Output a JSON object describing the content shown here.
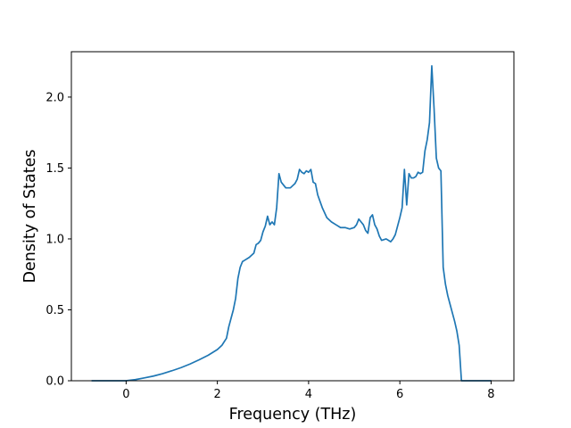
{
  "chart_data": {
    "type": "line",
    "title": "",
    "xlabel": "Frequency (THz)",
    "ylabel": "Density of States",
    "xlim": [
      -1.2,
      8.5
    ],
    "ylim": [
      0.0,
      2.32
    ],
    "xticks": [
      0,
      2,
      4,
      6,
      8
    ],
    "xtick_labels": [
      "0",
      "2",
      "4",
      "6",
      "8"
    ],
    "yticks": [
      0.0,
      0.5,
      1.0,
      1.5,
      2.0
    ],
    "ytick_labels": [
      "0.0",
      "0.5",
      "1.0",
      "1.5",
      "2.0"
    ],
    "grid": false,
    "legend": "none",
    "series": [
      {
        "color": "#1f77b4",
        "x": [
          -0.75,
          -0.2,
          0.0,
          0.2,
          0.4,
          0.6,
          0.8,
          1.0,
          1.2,
          1.4,
          1.6,
          1.8,
          2.0,
          2.1,
          2.2,
          2.25,
          2.3,
          2.35,
          2.4,
          2.45,
          2.5,
          2.55,
          2.6,
          2.7,
          2.8,
          2.85,
          2.9,
          2.95,
          3.0,
          3.05,
          3.1,
          3.15,
          3.2,
          3.25,
          3.3,
          3.35,
          3.4,
          3.5,
          3.6,
          3.7,
          3.75,
          3.8,
          3.85,
          3.9,
          3.95,
          4.0,
          4.05,
          4.1,
          4.15,
          4.2,
          4.3,
          4.4,
          4.5,
          4.6,
          4.7,
          4.8,
          4.9,
          5.0,
          5.05,
          5.1,
          5.15,
          5.2,
          5.25,
          5.3,
          5.35,
          5.4,
          5.45,
          5.5,
          5.55,
          5.6,
          5.7,
          5.8,
          5.85,
          5.9,
          6.0,
          6.05,
          6.1,
          6.15,
          6.2,
          6.25,
          6.3,
          6.35,
          6.4,
          6.45,
          6.5,
          6.55,
          6.6,
          6.65,
          6.7,
          6.75,
          6.8,
          6.85,
          6.9,
          6.95,
          7.0,
          7.05,
          7.1,
          7.15,
          7.2,
          7.25,
          7.3,
          7.35,
          7.5,
          8.0
        ],
        "y": [
          0.0,
          0.0,
          0.0,
          0.008,
          0.02,
          0.033,
          0.05,
          0.07,
          0.092,
          0.118,
          0.148,
          0.18,
          0.22,
          0.25,
          0.3,
          0.38,
          0.44,
          0.5,
          0.58,
          0.72,
          0.8,
          0.84,
          0.85,
          0.87,
          0.9,
          0.96,
          0.97,
          0.99,
          1.05,
          1.09,
          1.16,
          1.1,
          1.12,
          1.1,
          1.22,
          1.46,
          1.4,
          1.36,
          1.36,
          1.39,
          1.42,
          1.49,
          1.47,
          1.46,
          1.48,
          1.47,
          1.49,
          1.4,
          1.39,
          1.31,
          1.22,
          1.15,
          1.12,
          1.1,
          1.08,
          1.08,
          1.07,
          1.08,
          1.1,
          1.14,
          1.12,
          1.1,
          1.06,
          1.04,
          1.15,
          1.17,
          1.1,
          1.07,
          1.02,
          0.99,
          1.0,
          0.98,
          1.0,
          1.03,
          1.15,
          1.22,
          1.49,
          1.24,
          1.46,
          1.43,
          1.43,
          1.44,
          1.47,
          1.46,
          1.47,
          1.62,
          1.7,
          1.82,
          2.22,
          1.92,
          1.57,
          1.5,
          1.48,
          0.8,
          0.68,
          0.6,
          0.54,
          0.48,
          0.42,
          0.35,
          0.25,
          0.0,
          0.0,
          0.0
        ]
      }
    ]
  }
}
